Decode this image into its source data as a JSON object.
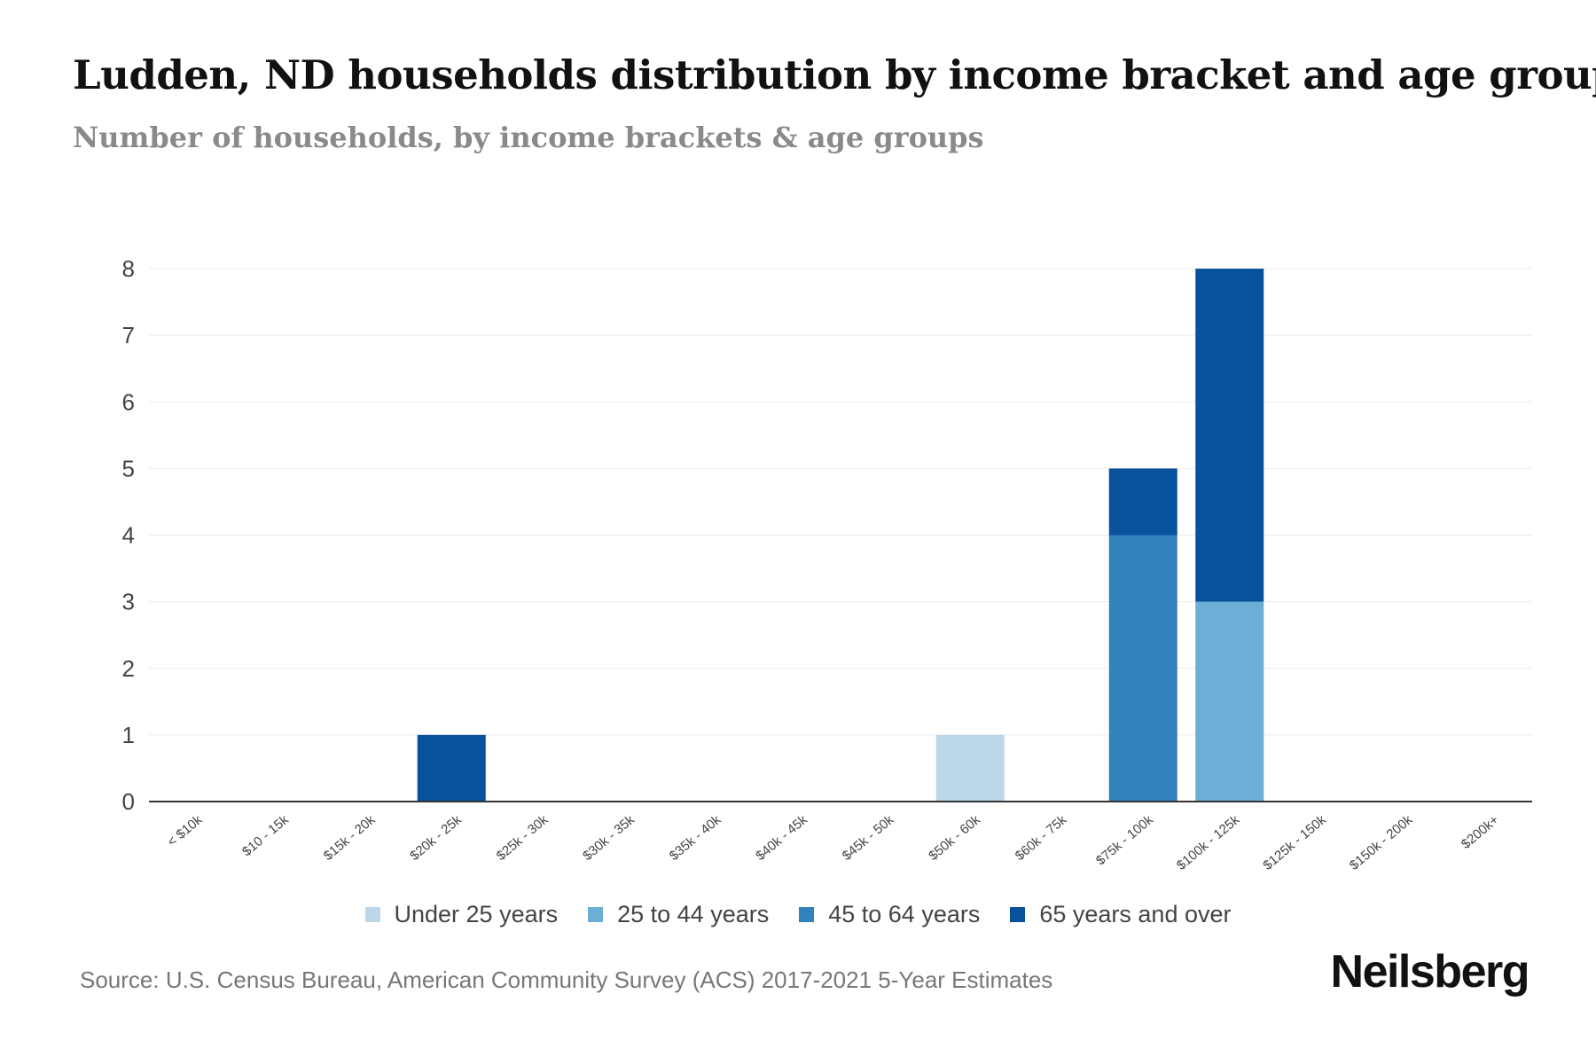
{
  "page": {
    "title": "Ludden, ND households distribution by income bracket and age group",
    "subtitle": "Number of households, by income brackets & age groups",
    "source": "Source: U.S. Census Bureau, American Community Survey (ACS) 2017-2021 5-Year Estimates",
    "brand": "Neilsberg"
  },
  "chart_data": {
    "type": "bar",
    "stacked": true,
    "title": "Ludden, ND households distribution by income bracket and age group",
    "subtitle": "Number of households, by income brackets & age groups",
    "xlabel": "",
    "ylabel": "",
    "ylim": [
      0,
      8
    ],
    "yticks": [
      0,
      1,
      2,
      3,
      4,
      5,
      6,
      7,
      8
    ],
    "grid": true,
    "legend_position": "bottom-center",
    "categories": [
      "< $10k",
      "$10 - 15k",
      "$15k - 20k",
      "$20k - 25k",
      "$25k - 30k",
      "$30k - 35k",
      "$35k - 40k",
      "$40k - 45k",
      "$45k - 50k",
      "$50k - 60k",
      "$60k - 75k",
      "$75k - 100k",
      "$100k - 125k",
      "$125k - 150k",
      "$150k - 200k",
      "$200k+"
    ],
    "series": [
      {
        "name": "Under 25 years",
        "color": "#bcd7e8",
        "values": [
          0,
          0,
          0,
          0,
          0,
          0,
          0,
          0,
          0,
          1,
          0,
          0,
          0,
          0,
          0,
          0
        ]
      },
      {
        "name": "25 to 44 years",
        "color": "#6baed6",
        "values": [
          0,
          0,
          0,
          0,
          0,
          0,
          0,
          0,
          0,
          0,
          0,
          0,
          3,
          0,
          0,
          0
        ]
      },
      {
        "name": "45 to 64 years",
        "color": "#3182bd",
        "values": [
          0,
          0,
          0,
          0,
          0,
          0,
          0,
          0,
          0,
          0,
          0,
          4,
          0,
          0,
          0,
          0
        ]
      },
      {
        "name": "65 years and over",
        "color": "#08519c",
        "values": [
          0,
          0,
          0,
          1,
          0,
          0,
          0,
          0,
          0,
          0,
          0,
          1,
          5,
          0,
          0,
          0
        ]
      }
    ]
  }
}
